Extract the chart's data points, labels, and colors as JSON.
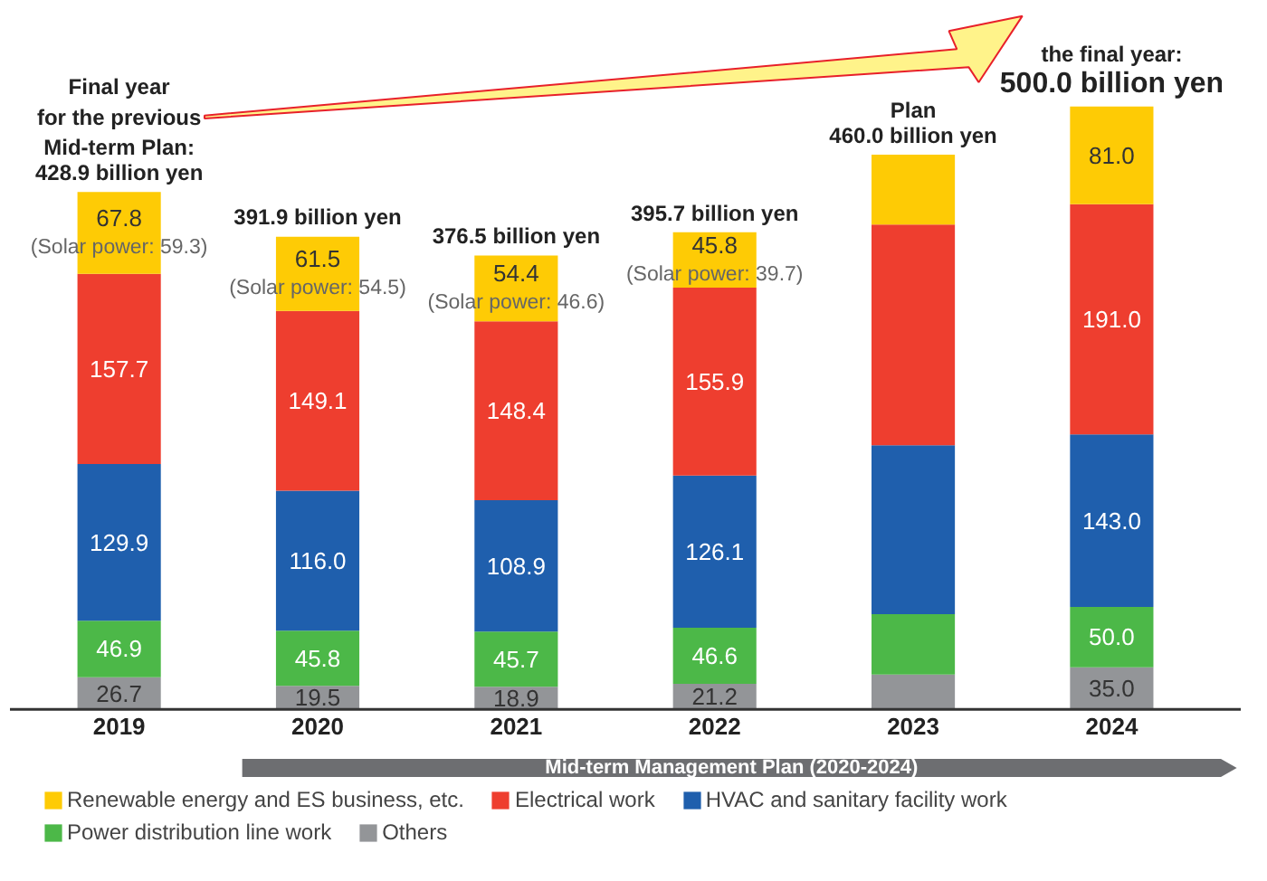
{
  "chart_data": {
    "type": "bar",
    "stacked": true,
    "categories": [
      "2019",
      "2020",
      "2021",
      "2022",
      "2023",
      "2024"
    ],
    "series": [
      {
        "name": "Others",
        "color": "#939598",
        "values": [
          26.7,
          19.5,
          18.9,
          21.2,
          29,
          35.0
        ],
        "value_labels": [
          "26.7",
          "19.5",
          "18.9",
          "21.2",
          null,
          "35.0"
        ]
      },
      {
        "name": "Power distribution line work",
        "color": "#4cb848",
        "values": [
          46.9,
          45.8,
          45.7,
          46.6,
          50,
          50.0
        ],
        "value_labels": [
          "46.9",
          "45.8",
          "45.7",
          "46.6",
          null,
          "50.0"
        ]
      },
      {
        "name": "HVAC and sanitary facility work",
        "color": "#1f5fad",
        "values": [
          129.9,
          116.0,
          108.9,
          126.1,
          140,
          143.0
        ],
        "value_labels": [
          "129.9",
          "116.0",
          "108.9",
          "126.1",
          null,
          "143.0"
        ]
      },
      {
        "name": "Electrical work",
        "color": "#ee3e2f",
        "values": [
          157.7,
          149.1,
          148.4,
          155.9,
          183,
          191.0
        ],
        "value_labels": [
          "157.7",
          "149.1",
          "148.4",
          "155.9",
          null,
          "191.0"
        ]
      },
      {
        "name": "Renewable energy and ES business, etc.",
        "color": "#fecb05",
        "values": [
          67.8,
          61.5,
          54.4,
          45.8,
          58,
          81.0
        ],
        "value_labels": [
          "67.8\n(Solar power: 59.3)",
          "61.5\n(Solar power: 54.5)",
          "54.4\n(Solar power: 46.6)",
          "45.8\n(Solar power: 39.7)",
          null,
          "81.0"
        ]
      }
    ],
    "totals": [
      "428.9 billion yen",
      "391.9 billion yen",
      "376.5 billion yen",
      "395.7 billion yen",
      "460.0 billion yen",
      "500.0 billion yen"
    ],
    "annotations": [
      "Final year\nfor the previous\nMid-term Plan:",
      "Plan",
      "the final year:",
      "Mid-term Management Plan (2020-2024)"
    ],
    "legend": "bottom"
  }
}
